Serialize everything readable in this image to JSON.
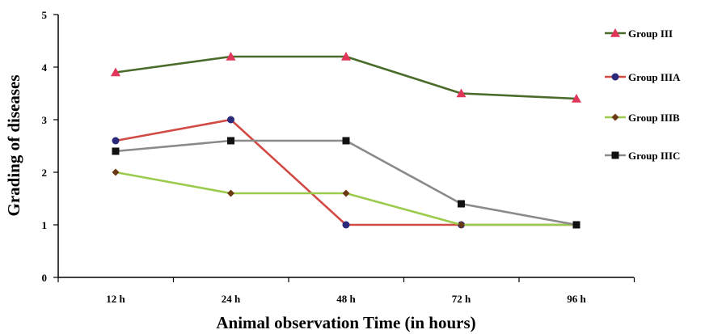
{
  "chart_data": {
    "type": "line",
    "title": "",
    "xlabel": "Animal observation Time (in hours)",
    "ylabel": "Grading of diseases",
    "categories": [
      "12 h",
      "24 h",
      "48 h",
      "72 h",
      "96 h"
    ],
    "ylim": [
      0,
      5
    ],
    "yticks": [
      "0",
      "1",
      "2",
      "3",
      "4",
      "5"
    ],
    "grid": false,
    "legend_position": "right",
    "series": [
      {
        "name": "Group III",
        "values": [
          3.9,
          4.2,
          4.2,
          3.5,
          3.4
        ],
        "color": "#4a6b2a",
        "marker": "triangle",
        "marker_color": "#e0365a"
      },
      {
        "name": "Group IIIA",
        "values": [
          2.6,
          3.0,
          1.0,
          1.0,
          1.0
        ],
        "color": "#d24a44",
        "marker": "circle",
        "marker_color": "#2b2a7a"
      },
      {
        "name": "Group IIIB",
        "values": [
          2.0,
          1.6,
          1.6,
          1.0,
          1.0
        ],
        "color": "#9acb4c",
        "marker": "diamond",
        "marker_color": "#6b3a14"
      },
      {
        "name": "Group IIIC",
        "values": [
          2.4,
          2.6,
          2.6,
          1.4,
          1.0
        ],
        "color": "#8a8a8a",
        "marker": "square",
        "marker_color": "#111111"
      }
    ]
  }
}
